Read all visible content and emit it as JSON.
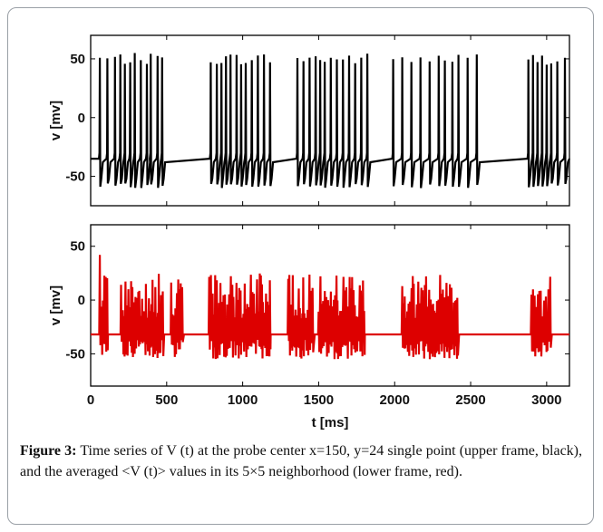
{
  "chart_data": [
    {
      "type": "line",
      "title": "",
      "xlabel": "",
      "ylabel": "v [mv]",
      "xlim": [
        0,
        3150
      ],
      "ylim": [
        -75,
        70
      ],
      "yticks": [
        50,
        0,
        -50
      ],
      "ytick_labels": [
        "50",
        "0",
        "-50"
      ],
      "grid": false,
      "series": [
        {
          "color": "#000000",
          "rest_potential": -35,
          "spike_peak_range": [
            45,
            55
          ],
          "trough": -60,
          "spike_times": [
            60,
            110,
            160,
            195,
            225,
            260,
            290,
            330,
            370,
            395,
            440,
            470,
            790,
            830,
            860,
            890,
            920,
            960,
            990,
            1020,
            1060,
            1100,
            1140,
            1180,
            1360,
            1400,
            1440,
            1480,
            1510,
            1540,
            1580,
            1620,
            1660,
            1700,
            1740,
            1780,
            1820,
            1990,
            2050,
            2110,
            2170,
            2230,
            2290,
            2330,
            2380,
            2420,
            2480,
            2540,
            2880,
            2910,
            2940,
            2970,
            3000,
            3030,
            3070,
            3120
          ]
        }
      ]
    },
    {
      "type": "line",
      "title": "",
      "xlabel": "t [ms]",
      "ylabel": "v [mv]",
      "xlim": [
        0,
        3150
      ],
      "ylim": [
        -80,
        70
      ],
      "yticks": [
        50,
        0,
        -50
      ],
      "ytick_labels": [
        "50",
        "0",
        "-50"
      ],
      "xticks": [
        0,
        500,
        1000,
        1500,
        2000,
        2500,
        3000
      ],
      "xtick_labels": [
        "0",
        "500",
        "1000",
        "1500",
        "2000",
        "2500",
        "3000"
      ],
      "grid": false,
      "series": [
        {
          "color": "#dd0000",
          "rest_potential": -32,
          "first_spike_peak": 42,
          "amplitude_range": [
            -55,
            25
          ],
          "burst_intervals": [
            [
              60,
              110
            ],
            [
              200,
              480
            ],
            [
              530,
              610
            ],
            [
              780,
              1180
            ],
            [
              1300,
              1470
            ],
            [
              1500,
              1800
            ],
            [
              2050,
              2420
            ],
            [
              2900,
              3030
            ]
          ]
        }
      ]
    }
  ],
  "caption": {
    "label": "Figure 3:",
    "text": " Time series of V (t) at the probe center x=150, y=24 single point (upper frame, black), and the averaged <V (t)> values in its 5×5 neighborhood (lower frame, red)."
  }
}
